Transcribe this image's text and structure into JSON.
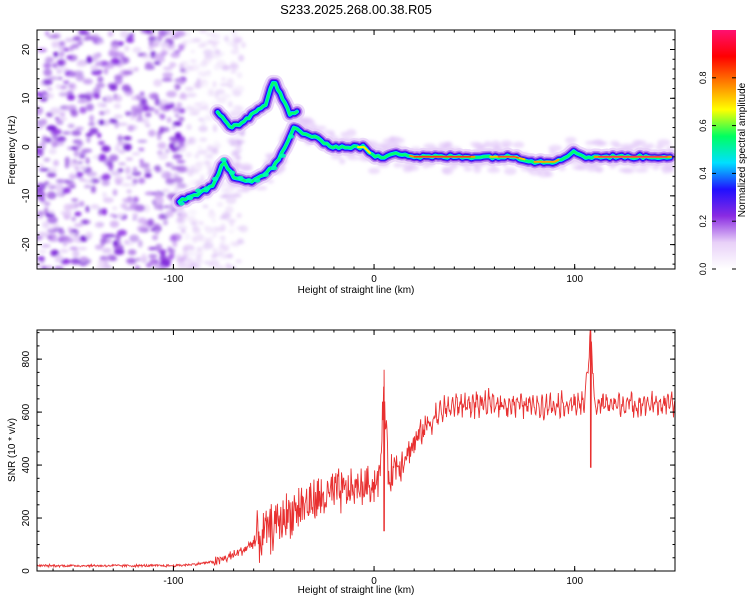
{
  "figure_title": "S233.2025.268.00.38.R05",
  "chart_data": [
    {
      "type": "heatmap",
      "title": "S233.2025.268.00.38.R05",
      "xlabel": "Height of straight line (km)",
      "ylabel": "Frequency (Hz)",
      "xlim": [
        -168,
        150
      ],
      "ylim": [
        -25,
        24
      ],
      "xticks": [
        -100,
        0,
        100
      ],
      "yticks": [
        -20,
        -10,
        0,
        10,
        20
      ],
      "colorbar": {
        "label": "Normalized spectral amplitude",
        "range": [
          0,
          1
        ],
        "ticks": [
          "0.0",
          "0.2",
          "0.4",
          "0.6",
          "0.8"
        ],
        "tick_values": [
          0.0,
          0.2,
          0.4,
          0.6,
          0.8
        ],
        "stops": [
          "#ffffff",
          "#e8d0f8",
          "#8a2be2",
          "#2010ff",
          "#00e0ff",
          "#00ff60",
          "#ffff00",
          "#ff8000",
          "#ff0000",
          "#ff1070"
        ]
      },
      "ridge": {
        "x": [
          -97,
          -90,
          -80,
          -75,
          -70,
          -62,
          -56,
          -50,
          -44,
          -40,
          -36,
          -30,
          -25,
          -20,
          -15,
          -10,
          -5,
          0,
          5,
          10,
          20,
          30,
          40,
          50,
          60,
          70,
          80,
          90,
          95,
          100,
          105,
          110,
          120,
          130,
          140,
          148
        ],
        "y": [
          -11,
          -10,
          -8,
          -3,
          -6,
          -7,
          -6,
          -4,
          0,
          4,
          3,
          2,
          1,
          0,
          0,
          0,
          0,
          -2,
          -2,
          -1,
          -2,
          -2,
          -2,
          -2,
          -2,
          -2,
          -3,
          -3,
          -2,
          -1,
          -2,
          -2,
          -2,
          -2,
          -2,
          -2
        ]
      },
      "upper_branch": {
        "x": [
          -78,
          -72,
          -66,
          -60,
          -54,
          -50,
          -46,
          -42,
          -38
        ],
        "y": [
          7,
          4,
          5,
          7,
          9,
          14,
          10,
          7,
          7
        ]
      },
      "noise_region_x": [
        -168,
        -80
      ]
    },
    {
      "type": "line",
      "xlabel": "Height of straight line (km)",
      "ylabel": "SNR (10 * v/v)",
      "xlim": [
        -168,
        150
      ],
      "ylim": [
        0,
        910
      ],
      "xticks": [
        -100,
        0,
        100
      ],
      "yticks": [
        0,
        200,
        400,
        600,
        800
      ],
      "series": [
        {
          "name": "SNR",
          "color": "#e83030",
          "x": [
            -168,
            -150,
            -130,
            -110,
            -100,
            -90,
            -80,
            -75,
            -70,
            -65,
            -60,
            -55,
            -50,
            -45,
            -40,
            -35,
            -30,
            -25,
            -20,
            -15,
            -10,
            -5,
            0,
            3,
            5,
            7,
            10,
            15,
            20,
            25,
            30,
            35,
            40,
            50,
            60,
            70,
            80,
            90,
            100,
            105,
            108,
            110,
            115,
            120,
            130,
            140,
            150
          ],
          "y": [
            20,
            20,
            20,
            20,
            20,
            25,
            35,
            45,
            60,
            80,
            110,
            140,
            170,
            200,
            230,
            250,
            260,
            275,
            290,
            300,
            310,
            320,
            330,
            360,
            700,
            360,
            390,
            430,
            480,
            540,
            580,
            610,
            625,
            630,
            630,
            630,
            625,
            630,
            630,
            630,
            900,
            625,
            630,
            630,
            630,
            630,
            630
          ],
          "spikes": [
            {
              "x": 5,
              "peak": 760,
              "low": 150
            },
            {
              "x": 108,
              "peak": 910,
              "low": 390
            }
          ],
          "noise_amplitude": 40
        }
      ]
    }
  ]
}
